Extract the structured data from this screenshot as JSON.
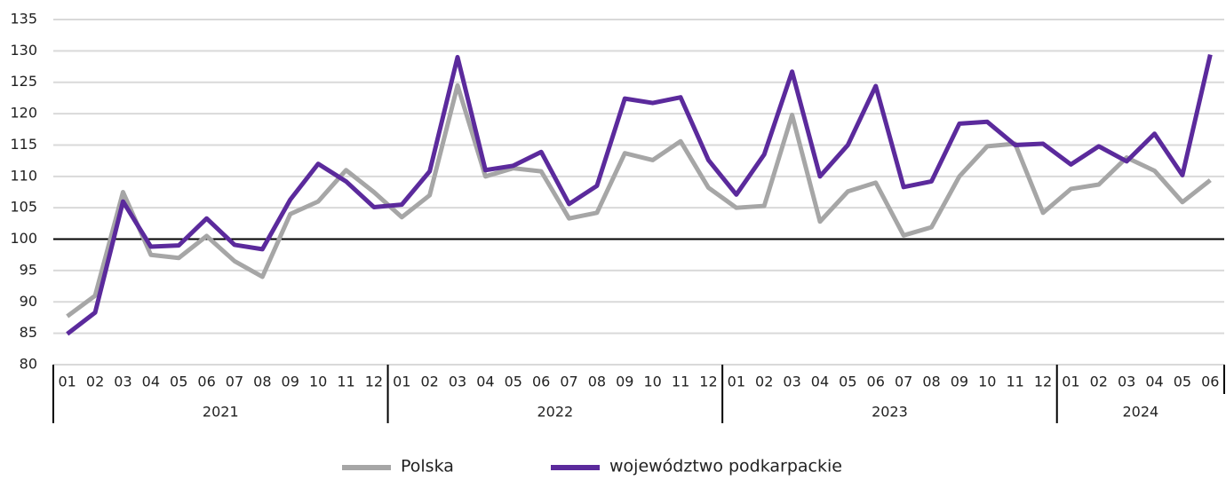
{
  "chart_data": {
    "type": "line",
    "categories": [
      "01",
      "02",
      "03",
      "04",
      "05",
      "06",
      "07",
      "08",
      "09",
      "10",
      "11",
      "12",
      "01",
      "02",
      "03",
      "04",
      "05",
      "06",
      "07",
      "08",
      "09",
      "10",
      "11",
      "12",
      "01",
      "02",
      "03",
      "04",
      "05",
      "06",
      "07",
      "08",
      "09",
      "10",
      "11",
      "12",
      "01",
      "02",
      "03",
      "04",
      "05",
      "06"
    ],
    "years": [
      "2021",
      "2022",
      "2023",
      "2024"
    ],
    "series": [
      {
        "name": "Polska",
        "color": "#a6a6a6",
        "values": [
          87.7,
          91,
          107.5,
          97.5,
          97,
          100.5,
          96.5,
          94,
          104,
          106,
          111,
          107.5,
          103.5,
          107,
          124.5,
          110,
          111.3,
          110.8,
          103.3,
          104.2,
          113.7,
          112.6,
          115.6,
          108.2,
          105,
          105.3,
          119.8,
          102.8,
          107.6,
          109,
          100.6,
          101.9,
          110,
          114.8,
          115.2,
          104.2,
          108,
          108.7,
          113,
          110.9,
          105.9,
          109.4
        ]
      },
      {
        "name": "województwo podkarpackie",
        "color": "#5b2a9c",
        "values": [
          84.9,
          88.3,
          106,
          98.8,
          99,
          103.3,
          99.1,
          98.4,
          106.3,
          112,
          109.2,
          105.1,
          105.5,
          110.8,
          129,
          111,
          111.7,
          113.9,
          105.6,
          108.5,
          122.4,
          121.7,
          122.6,
          112.6,
          107.1,
          113.5,
          126.7,
          110,
          115,
          124.4,
          108.3,
          109.2,
          118.4,
          118.7,
          115,
          115.2,
          111.9,
          114.8,
          112.4,
          116.8,
          110.2,
          129.4
        ]
      }
    ],
    "ylim": [
      80,
      135
    ],
    "yticks": [
      80,
      85,
      90,
      95,
      100,
      105,
      110,
      115,
      120,
      125,
      130,
      135
    ],
    "reference_line": 100,
    "grid": true,
    "legend": "bottom"
  }
}
